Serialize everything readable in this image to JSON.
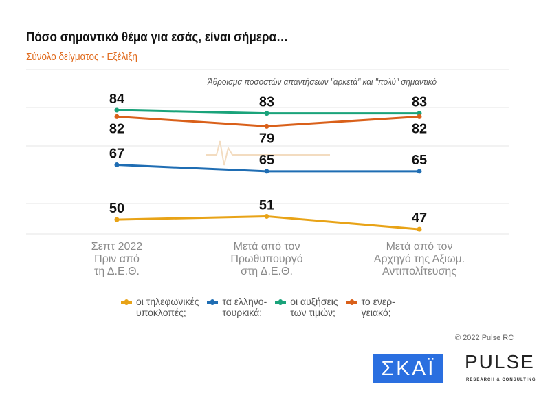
{
  "header": {
    "title": "Πόσο σημαντικό θέμα για εσάς, είναι σήμερα…",
    "subtitle": "Σύνολο δείγματος - Εξέλιξη",
    "note": "Άθροισμα ποσοστών απαντήσεων \"αρκετά\" και \"πολύ\" σημαντικό"
  },
  "chart_data": {
    "type": "line",
    "categories": [
      "Σεπτ 2022 Πριν από τη Δ.Ε.Θ.",
      "Μετά από τον Πρωθυπουργό στη Δ.Ε.Θ.",
      "Μετά από τον Αρχηγό της Αξιωμ. Αντιπολίτευσης"
    ],
    "category_lines": [
      [
        "Σεπτ 2022",
        "Πριν από",
        "τη Δ.Ε.Θ."
      ],
      [
        "Μετά από τον",
        "Πρωθυπουργό",
        "στη Δ.Ε.Θ."
      ],
      [
        "Μετά από τον",
        "Αρχηγό της Αξιωμ.",
        "Αντιπολίτευσης"
      ]
    ],
    "series": [
      {
        "name": "οι τηλεφωνικές υποκλοπές;",
        "legend_lines": [
          "οι τηλεφωνικές",
          "υποκλοπές;"
        ],
        "color": "#e8a317",
        "values": [
          50,
          51,
          47
        ]
      },
      {
        "name": "τα ελληνο-τουρκικά;",
        "legend_lines": [
          "τα ελληνο-",
          "τουρκικά;"
        ],
        "color": "#1f6db3",
        "values": [
          67,
          65,
          65
        ]
      },
      {
        "name": "οι αυξήσεις των τιμών;",
        "legend_lines": [
          "οι αυξήσεις",
          "των τιμών;"
        ],
        "color": "#1aa37a",
        "values": [
          84,
          83,
          83
        ]
      },
      {
        "name": "το ενεργειακό;",
        "legend_lines": [
          "το ενερ-",
          "γειακό;"
        ],
        "color": "#d9601a",
        "values": [
          82,
          79,
          82
        ]
      }
    ],
    "legend": "bottom",
    "grid": true
  },
  "footer": {
    "copyright": "© 2022 Pulse RC",
    "logo_skai": "ΣΚΑΪ",
    "logo_pulse": "PULSE",
    "logo_pulse_sub": "RESEARCH & CONSULTING"
  }
}
